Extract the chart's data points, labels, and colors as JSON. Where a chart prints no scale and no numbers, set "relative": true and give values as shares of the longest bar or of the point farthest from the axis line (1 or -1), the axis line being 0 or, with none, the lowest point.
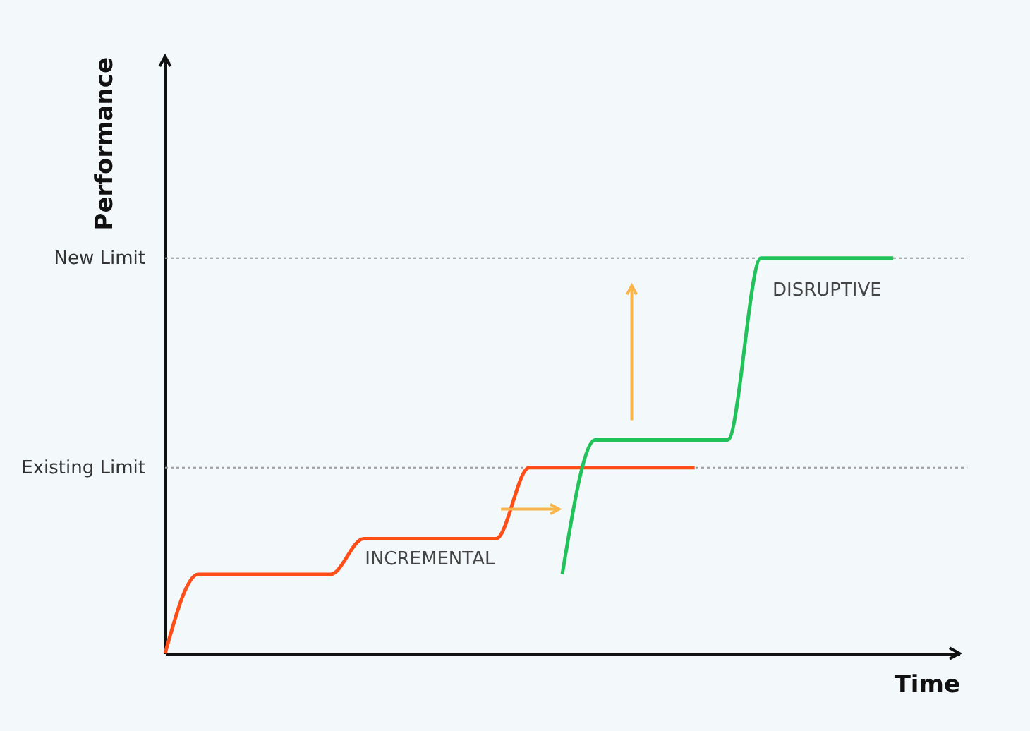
{
  "chart_data": {
    "type": "line",
    "relative": true,
    "xlabel": "Time",
    "ylabel": "Performance",
    "categories": [
      null,
      null,
      null,
      null,
      null,
      null,
      null,
      null,
      null,
      null,
      null,
      null,
      null,
      null,
      null,
      null,
      null,
      null,
      null,
      null,
      null,
      null,
      null,
      null,
      null
    ],
    "series": [
      {
        "name": "INCREMENTAL",
        "color": "#ff4e17",
        "values": [
          0,
          0.2,
          0.2,
          0.2,
          0.2,
          0.2,
          0.29,
          0.29,
          0.29,
          0.29,
          0.29,
          0.47,
          0.47,
          0.47,
          0.47,
          0.47,
          0.47,
          null,
          null,
          null,
          null,
          null,
          null,
          null,
          null
        ]
      },
      {
        "name": "DISRUPTIVE",
        "color": "#22c25a",
        "values": [
          null,
          null,
          null,
          null,
          null,
          null,
          null,
          null,
          null,
          null,
          null,
          null,
          0.2,
          0.54,
          0.54,
          0.54,
          0.54,
          0.54,
          1,
          1,
          1,
          1,
          1,
          null,
          null
        ]
      }
    ],
    "ref_lines": [
      {
        "axis": "y",
        "value": 1,
        "label": "New Limit",
        "color": "#999999",
        "line_style": "dotted"
      },
      {
        "axis": "y",
        "value": 0.47,
        "label": "Existing Limit",
        "color": "#999999",
        "line_style": "dotted"
      }
    ]
  }
}
